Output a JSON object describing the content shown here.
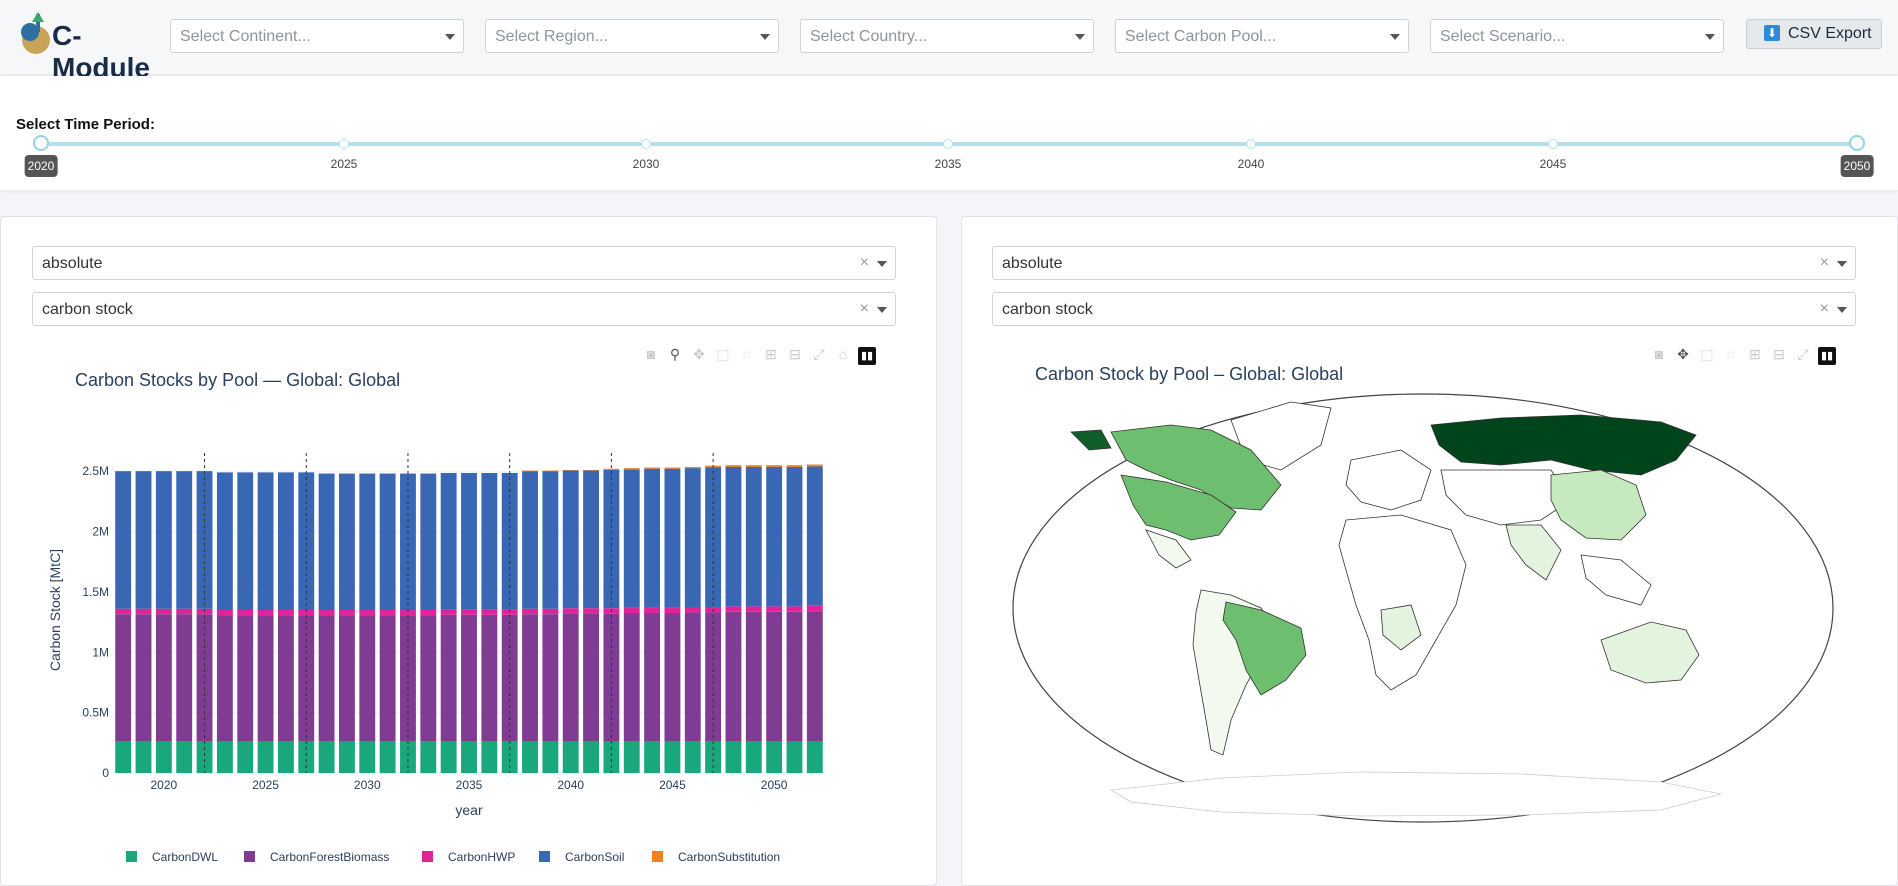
{
  "app": {
    "logo_text": "C-Module"
  },
  "filters": [
    {
      "placeholder": "Select Continent..."
    },
    {
      "placeholder": "Select Region..."
    },
    {
      "placeholder": "Select Country..."
    },
    {
      "placeholder": "Select Carbon Pool..."
    },
    {
      "placeholder": "Select Scenario..."
    }
  ],
  "export_button": {
    "label": "CSV Export",
    "icon": "download-icon"
  },
  "time_period": {
    "label": "Select Time Period:",
    "ticks": [
      "2020",
      "2025",
      "2030",
      "2035",
      "2040",
      "2045",
      "2050"
    ],
    "selected_start": "2020",
    "selected_end": "2050"
  },
  "left_panel": {
    "mode_value": "absolute",
    "metric_value": "carbon stock",
    "chart_title": "Carbon Stocks by Pool — Global: Global"
  },
  "right_panel": {
    "mode_value": "absolute",
    "metric_value": "carbon stock",
    "map_title": "Carbon Stock by Pool – Global: Global"
  },
  "colors": {
    "CarbonDWL": "#1aa77d",
    "CarbonForestBiomass": "#803b92",
    "CarbonHWP": "#e02497",
    "CarbonSoil": "#3a67b4",
    "CarbonSubstitution": "#f0821e"
  },
  "chart_data": {
    "type": "bar",
    "stacked": true,
    "xlabel": "year",
    "ylabel": "Carbon Stock [MtC]",
    "ylim": [
      0,
      2700000
    ],
    "yticks": [
      0,
      500000,
      1000000,
      1500000,
      2000000,
      2500000
    ],
    "ytick_labels": [
      "0",
      "0.5M",
      "1M",
      "1.5M",
      "2M",
      "2.5M"
    ],
    "xticks": [
      "2020",
      "2025",
      "2030",
      "2035",
      "2040",
      "2045",
      "2050"
    ],
    "x": [
      2018,
      2019,
      2020,
      2021,
      2022,
      2023,
      2024,
      2025,
      2026,
      2027,
      2028,
      2029,
      2030,
      2031,
      2032,
      2033,
      2034,
      2035,
      2036,
      2037,
      2038,
      2039,
      2040,
      2041,
      2042,
      2043,
      2044,
      2045,
      2046,
      2047,
      2048,
      2049,
      2050,
      2051,
      2052
    ],
    "legend_position": "bottom",
    "series": [
      {
        "name": "CarbonDWL",
        "values": [
          265000,
          265000,
          265000,
          265000,
          265000,
          265000,
          265000,
          265000,
          265000,
          265000,
          265000,
          265000,
          265000,
          265000,
          265000,
          265000,
          265000,
          265000,
          265000,
          265000,
          265000,
          265000,
          265000,
          265000,
          265000,
          265000,
          265000,
          265000,
          265000,
          265000,
          265000,
          265000,
          265000,
          265000,
          265000
        ]
      },
      {
        "name": "CarbonForestBiomass",
        "values": [
          1050000,
          1050000,
          1050000,
          1050000,
          1050000,
          1040000,
          1040000,
          1040000,
          1040000,
          1040000,
          1040000,
          1040000,
          1040000,
          1040000,
          1040000,
          1040000,
          1045000,
          1045000,
          1045000,
          1045000,
          1050000,
          1050000,
          1055000,
          1055000,
          1055000,
          1060000,
          1060000,
          1060000,
          1065000,
          1065000,
          1070000,
          1070000,
          1070000,
          1070000,
          1075000
        ]
      },
      {
        "name": "CarbonHWP",
        "values": [
          45000,
          45000,
          45000,
          45000,
          45000,
          45000,
          45000,
          45000,
          45000,
          45000,
          45000,
          45000,
          45000,
          45000,
          45000,
          45000,
          45000,
          45000,
          45000,
          45000,
          45000,
          45000,
          45000,
          45000,
          45000,
          45000,
          45000,
          45000,
          45000,
          45000,
          45000,
          45000,
          45000,
          45000,
          45000
        ]
      },
      {
        "name": "CarbonSoil",
        "values": [
          1140000,
          1140000,
          1140000,
          1140000,
          1140000,
          1140000,
          1140000,
          1140000,
          1140000,
          1140000,
          1130000,
          1130000,
          1130000,
          1130000,
          1130000,
          1130000,
          1130000,
          1130000,
          1130000,
          1130000,
          1140000,
          1140000,
          1140000,
          1140000,
          1145000,
          1145000,
          1150000,
          1150000,
          1150000,
          1155000,
          1155000,
          1155000,
          1155000,
          1155000,
          1155000
        ]
      },
      {
        "name": "CarbonSubstitution",
        "values": [
          0,
          0,
          0,
          0,
          0,
          0,
          0,
          0,
          0,
          0,
          0,
          0,
          0,
          0,
          0,
          0,
          0,
          0,
          0,
          0,
          5000,
          5000,
          5000,
          5000,
          10000,
          10000,
          10000,
          10000,
          10000,
          15000,
          15000,
          15000,
          15000,
          15000,
          15000
        ]
      }
    ]
  }
}
